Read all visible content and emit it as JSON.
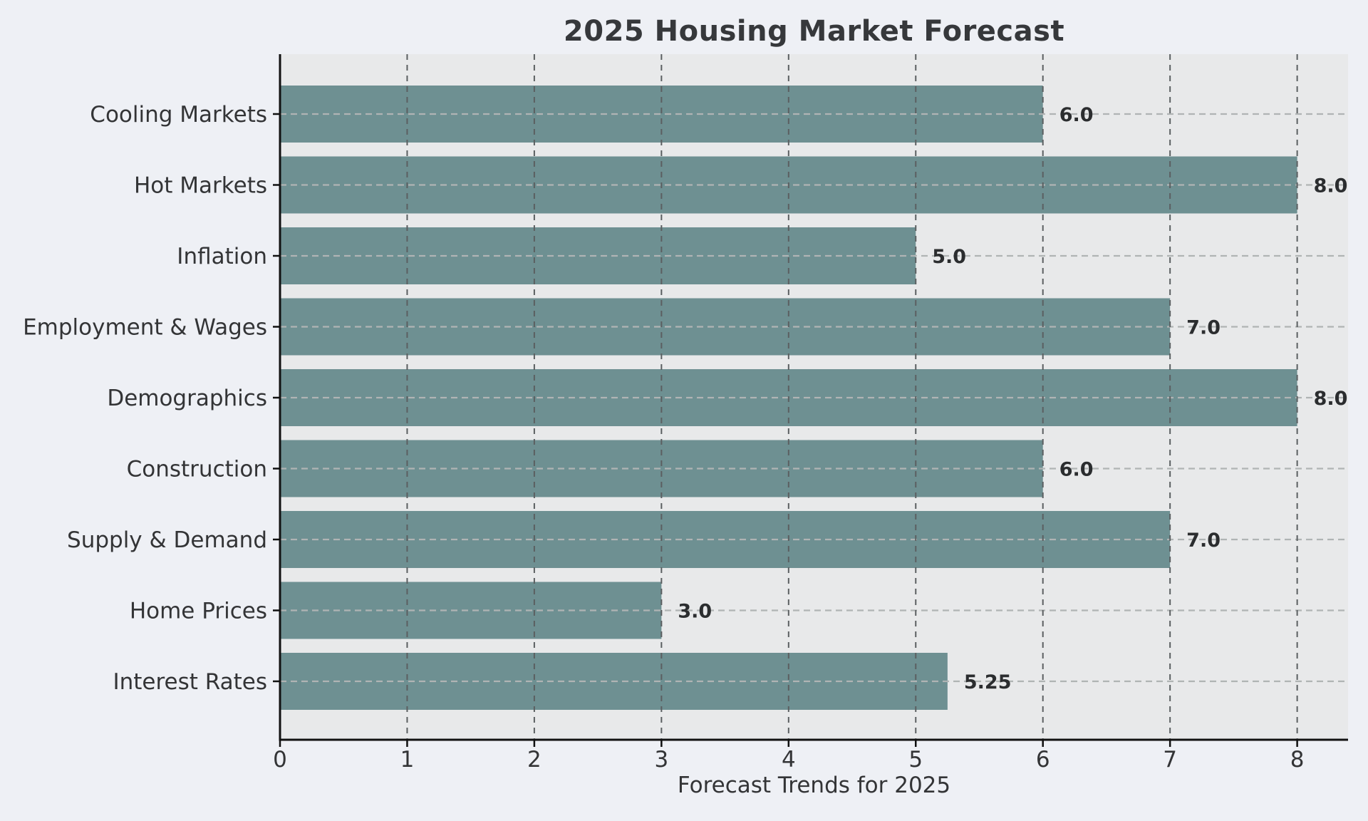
{
  "chart_data": {
    "type": "bar",
    "orientation": "horizontal",
    "title": "2025 Housing Market Forecast",
    "xlabel": "Forecast Trends for 2025",
    "ylabel": "",
    "categories": [
      "Cooling Markets",
      "Hot Markets",
      "Inflation",
      "Employment & Wages",
      "Demographics",
      "Construction",
      "Supply & Demand",
      "Home Prices",
      "Interest Rates"
    ],
    "values": [
      6.0,
      8.0,
      5.0,
      7.0,
      8.0,
      6.0,
      7.0,
      3.0,
      5.25
    ],
    "value_labels": [
      "6.0",
      "8.0",
      "5.0",
      "7.0",
      "8.0",
      "6.0",
      "7.0",
      "3.0",
      "5.25"
    ],
    "x_ticks": [
      0,
      1,
      2,
      3,
      4,
      5,
      6,
      7,
      8
    ],
    "xlim": [
      0,
      8.4
    ],
    "bar_fraction": 0.8,
    "grid": {
      "x_gridlines": "dashed",
      "y_gridlines": "dashed"
    },
    "legend": null,
    "colors": {
      "figure_bg": "#eef0f5",
      "plot_bg": "#e8e9ea",
      "bar": "#6e9092",
      "x_grid": "#5b5f61",
      "y_grid": "#b0b4b4",
      "spine": "#111111",
      "title": "#36383b",
      "axis_text": "#333436",
      "value_label": "#2b2d2f"
    }
  }
}
